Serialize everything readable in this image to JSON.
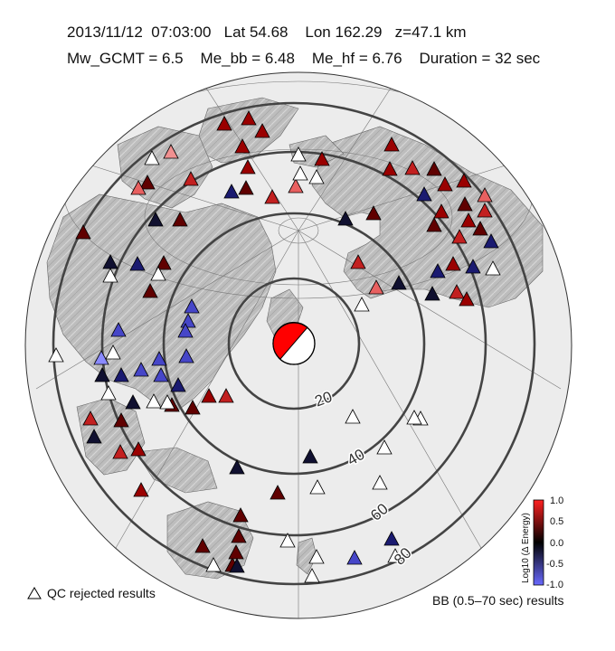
{
  "header": {
    "line1": "2013/11/12  07:03:00   Lat 54.68    Lon 162.29   z=47.1 km",
    "line2": "Mw_GCMT = 6.5    Me_bb = 6.48    Me_hf = 6.76    Duration = 32 sec"
  },
  "distance_labels": [
    "20",
    "40",
    "60",
    "80"
  ],
  "colorbar": {
    "title": "Log10 (Δ Energy)",
    "ticks": [
      "1.0",
      "0.5",
      "0.0",
      "-0.5",
      "-1.0"
    ],
    "colors": {
      "high": "#ff2020",
      "mid": "#000000",
      "low": "#6a6aff"
    }
  },
  "legend": {
    "qc_rejected": "QC rejected results",
    "bb_results": "BB (0.5–70 sec) results"
  },
  "map": {
    "projection": "azimuthal-equidistant",
    "land_color": "#bdbdbd",
    "ocean_color": "#ececec",
    "ring_color": "#444444",
    "beachball_colors": [
      "#ff0000",
      "#ffffff"
    ]
  }
}
